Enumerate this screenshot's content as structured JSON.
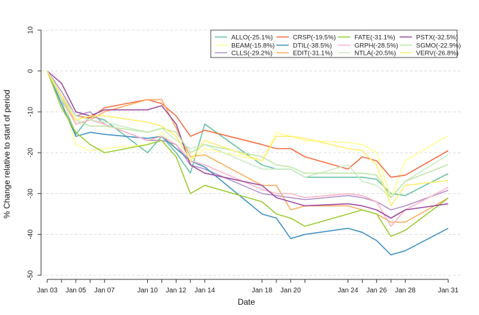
{
  "chart_data": {
    "type": "line",
    "title": "",
    "xlabel": "Date",
    "ylabel": "% Change relative to start of period",
    "ylim": [
      -50,
      10
    ],
    "yticks": [
      10,
      0,
      -10,
      -20,
      -30,
      -40,
      -50
    ],
    "grid": "horizontal dashed",
    "legend_position": "top-right",
    "x": [
      "Jan 03",
      "Jan 04",
      "Jan 05",
      "Jan 06",
      "Jan 07",
      "Jan 10",
      "Jan 11",
      "Jan 12",
      "Jan 13",
      "Jan 14",
      "Jan 18",
      "Jan 19",
      "Jan 20",
      "Jan 21",
      "Jan 24",
      "Jan 25",
      "Jan 26",
      "Jan 27",
      "Jan 28",
      "Jan 31"
    ],
    "xticks": [
      "Jan 03",
      "Jan 05",
      "Jan 07",
      "Jan 10",
      "Jan 12",
      "Jan 14",
      "Jan 18",
      "Jan 20",
      "Jan 24",
      "Jan 26",
      "Jan 28",
      "Jan 31"
    ],
    "series": [
      {
        "name": "ALLO(-25.1%)",
        "color": "#66c2a5",
        "values": [
          0,
          -7,
          -15.5,
          -11,
          -12,
          -20,
          -16,
          -20,
          -25,
          -13,
          -23,
          -24,
          -24,
          -26,
          -26,
          -26,
          -26.5,
          -30,
          -30.5,
          -25.1
        ]
      },
      {
        "name": "BEAM(-15.8%)",
        "color": "#ffff99",
        "values": [
          0,
          -6,
          -18,
          -19.5,
          -19,
          -18,
          -15,
          -19,
          -22,
          -19,
          -22,
          -15,
          -16,
          -17,
          -17.5,
          -18,
          -20,
          -31,
          -22,
          -15.8
        ]
      },
      {
        "name": "CLLS(-29.2%)",
        "color": "#b294cc",
        "values": [
          0,
          -5,
          -11,
          -10,
          -13,
          -17,
          -17,
          -18,
          -23,
          -24,
          -30,
          -30.5,
          -31,
          -31.5,
          -30.5,
          -31,
          -32,
          -34,
          -33,
          -29.2
        ]
      },
      {
        "name": "CRSP(-19.5%)",
        "color": "#f46d43",
        "values": [
          0,
          -6,
          -11,
          -11.5,
          -9,
          -7,
          -8,
          -11,
          -16,
          -14.5,
          -18,
          -19,
          -19,
          -21,
          -24,
          -21,
          -22,
          -26,
          -25.5,
          -19.5
        ]
      },
      {
        "name": "DTIL(-38.5%)",
        "color": "#4292c6",
        "values": [
          0,
          -8,
          -16,
          -15,
          -15.5,
          -16.5,
          -16,
          -19,
          -22,
          -23.5,
          -35,
          -36,
          -41,
          -40,
          -38.5,
          -39.5,
          -41.5,
          -45,
          -44,
          -38.5
        ]
      },
      {
        "name": "EDIT(-31.1%)",
        "color": "#fdae61",
        "values": [
          0,
          -6,
          -13,
          -12,
          -10,
          -7,
          -7,
          -14,
          -21,
          -20.5,
          -28,
          -28,
          -34,
          -33,
          -33,
          -34,
          -35,
          -37,
          -37,
          -31.1
        ]
      },
      {
        "name": "FATE(-31.1%)",
        "color": "#9acd32",
        "values": [
          0,
          -9,
          -15,
          -18,
          -20,
          -18,
          -17,
          -21,
          -30,
          -28,
          -32,
          -35,
          -36,
          -38,
          -35,
          -34,
          -35,
          -40.5,
          -39,
          -31.1
        ]
      },
      {
        "name": "GRPH(-28.5%)",
        "color": "#fbb4c4",
        "values": [
          0,
          -7,
          -13,
          -12,
          -13,
          -17,
          -16,
          -18,
          -22,
          -23,
          -29,
          -30,
          -30,
          -31,
          -30,
          -30.5,
          -32,
          -38,
          -34,
          -28.5
        ]
      },
      {
        "name": "NTLA(-20.5%)",
        "color": "#ccebc5",
        "values": [
          0,
          -6,
          -11,
          -12,
          -12.5,
          -15,
          -14,
          -17,
          -19,
          -18,
          -24,
          -24,
          -24,
          -26,
          -23,
          -27,
          -28,
          -31,
          -27,
          -20.5
        ]
      },
      {
        "name": "PSTX(-32.5%)",
        "color": "#9e4a9e",
        "values": [
          0,
          -3,
          -10,
          -11,
          -9.5,
          -9.5,
          -8.5,
          -13,
          -23,
          -25,
          -28,
          -31,
          -32,
          -33,
          -32.5,
          -33,
          -34,
          -36,
          -34,
          -32.5
        ]
      },
      {
        "name": "SGMO(-22.9%)",
        "color": "#bfe7a5",
        "values": [
          0,
          -7,
          -12,
          -13.5,
          -13.5,
          -15,
          -14,
          -15,
          -20,
          -18,
          -21,
          -23,
          -23.5,
          -25,
          -25,
          -25,
          -25.5,
          -31,
          -27,
          -22.9
        ]
      },
      {
        "name": "VERV(-26.8%)",
        "color": "#ffed6f",
        "values": [
          0,
          -6,
          -12,
          -11,
          -11,
          -12.5,
          -13.5,
          -16,
          -22,
          -17,
          -22,
          -16,
          -16,
          -16.5,
          -19,
          -19.5,
          -23,
          -33,
          -28,
          -26.8
        ]
      }
    ]
  }
}
